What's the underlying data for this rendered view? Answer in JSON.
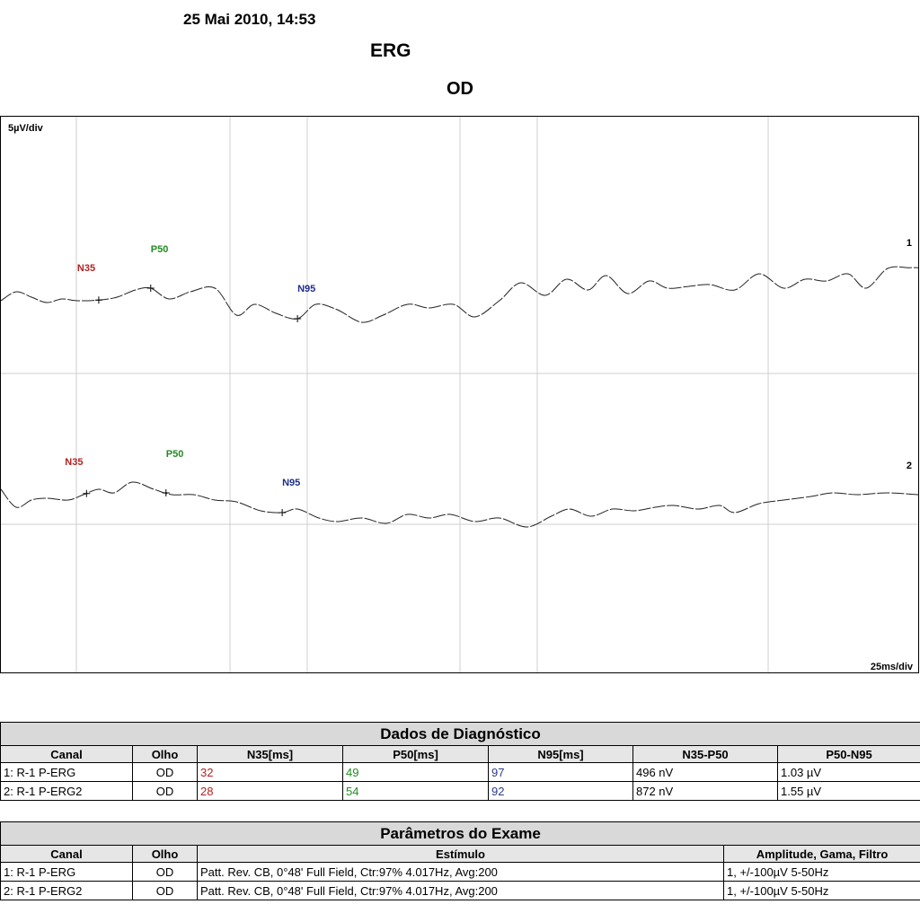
{
  "header": {
    "date": "25 Mai 2010, 14:53",
    "title": "ERG",
    "eye": "OD"
  },
  "colors": {
    "n35": "#b22222",
    "p50": "#228b22",
    "n95": "#1f2f8a",
    "trace": "#222222",
    "grid": "#cfcfcf"
  },
  "chart_data": {
    "type": "line",
    "ylabel": "5µV/div",
    "xlabel": "25ms/div",
    "series": [
      {
        "name": "1",
        "points": [
          [
            0,
            -0.3
          ],
          [
            5,
            -0.05
          ],
          [
            10,
            -0.2
          ],
          [
            15,
            -0.35
          ],
          [
            20,
            -0.25
          ],
          [
            25,
            -0.3
          ],
          [
            32,
            -0.28
          ],
          [
            38,
            -0.2
          ],
          [
            44,
            0.0
          ],
          [
            49,
            0.05
          ],
          [
            55,
            -0.25
          ],
          [
            62,
            -0.05
          ],
          [
            70,
            0.05
          ],
          [
            77,
            -0.7
          ],
          [
            83,
            -0.4
          ],
          [
            90,
            -0.65
          ],
          [
            97,
            -0.8
          ],
          [
            103,
            -0.4
          ],
          [
            110,
            -0.55
          ],
          [
            118,
            -0.9
          ],
          [
            125,
            -0.7
          ],
          [
            133,
            -0.4
          ],
          [
            140,
            -0.5
          ],
          [
            148,
            -0.4
          ],
          [
            155,
            -0.75
          ],
          [
            163,
            -0.3
          ],
          [
            170,
            0.2
          ],
          [
            178,
            -0.15
          ],
          [
            185,
            0.3
          ],
          [
            192,
            0.0
          ],
          [
            198,
            0.4
          ],
          [
            205,
            -0.1
          ],
          [
            212,
            0.25
          ],
          [
            218,
            0.05
          ],
          [
            225,
            0.1
          ],
          [
            232,
            0.15
          ],
          [
            240,
            0.0
          ],
          [
            248,
            0.45
          ],
          [
            256,
            0.05
          ],
          [
            263,
            0.3
          ],
          [
            270,
            0.25
          ],
          [
            277,
            0.45
          ],
          [
            283,
            0.05
          ],
          [
            290,
            0.6
          ],
          [
            297,
            0.62
          ],
          [
            300,
            0.62
          ]
        ]
      },
      {
        "name": "2",
        "points": [
          [
            0,
            0.1
          ],
          [
            5,
            -0.4
          ],
          [
            10,
            -0.2
          ],
          [
            15,
            -0.15
          ],
          [
            22,
            -0.2
          ],
          [
            27,
            -0.05
          ],
          [
            32,
            0.1
          ],
          [
            37,
            0.0
          ],
          [
            43,
            0.3
          ],
          [
            50,
            0.1
          ],
          [
            56,
            -0.05
          ],
          [
            63,
            -0.05
          ],
          [
            70,
            -0.2
          ],
          [
            77,
            -0.25
          ],
          [
            85,
            -0.5
          ],
          [
            92,
            -0.55
          ],
          [
            97,
            -0.45
          ],
          [
            104,
            -0.7
          ],
          [
            110,
            -0.8
          ],
          [
            118,
            -0.7
          ],
          [
            126,
            -0.85
          ],
          [
            133,
            -0.6
          ],
          [
            140,
            -0.7
          ],
          [
            147,
            -0.6
          ],
          [
            155,
            -0.8
          ],
          [
            163,
            -0.7
          ],
          [
            172,
            -0.95
          ],
          [
            180,
            -0.65
          ],
          [
            186,
            -0.45
          ],
          [
            193,
            -0.65
          ],
          [
            200,
            -0.45
          ],
          [
            207,
            -0.5
          ],
          [
            214,
            -0.4
          ],
          [
            220,
            -0.35
          ],
          [
            228,
            -0.45
          ],
          [
            235,
            -0.35
          ],
          [
            240,
            -0.55
          ],
          [
            248,
            -0.3
          ],
          [
            256,
            -0.2
          ],
          [
            265,
            -0.1
          ],
          [
            272,
            0.0
          ],
          [
            280,
            -0.05
          ],
          [
            290,
            0.0
          ],
          [
            300,
            -0.05
          ]
        ]
      }
    ],
    "markers": [
      {
        "series": 0,
        "label": "N35",
        "x": 32,
        "type": "n35"
      },
      {
        "series": 0,
        "label": "P50",
        "x": 49,
        "type": "p50"
      },
      {
        "series": 0,
        "label": "N95",
        "x": 97,
        "type": "n95"
      },
      {
        "series": 1,
        "label": "N35",
        "x": 28,
        "type": "n35"
      },
      {
        "series": 1,
        "label": "P50",
        "x": 54,
        "type": "p50"
      },
      {
        "series": 1,
        "label": "N95",
        "x": 92,
        "type": "n95"
      }
    ],
    "channel_labels": [
      "1",
      "2"
    ],
    "xlim": [
      0,
      300
    ]
  },
  "diagnostics": {
    "title": "Dados de Diagnóstico",
    "columns": [
      "Canal",
      "Olho",
      "N35[ms]",
      "P50[ms]",
      "N95[ms]",
      "N35-P50",
      "P50-N95"
    ],
    "rows": [
      [
        "1: R-1 P-ERG",
        "OD",
        "32",
        "49",
        "97",
        "496 nV",
        "1.03 µV"
      ],
      [
        "2: R-1 P-ERG2",
        "OD",
        "28",
        "54",
        "92",
        "872 nV",
        "1.55 µV"
      ]
    ]
  },
  "params": {
    "title": "Parâmetros do Exame",
    "columns": [
      "Canal",
      "Olho",
      "Estímulo",
      "Amplitude, Gama, Filtro"
    ],
    "rows": [
      [
        "1: R-1 P-ERG",
        "OD",
        "Patt. Rev. CB, 0°48' Full Field, Ctr:97% 4.017Hz, Avg:200",
        "1, +/-100µV 5-50Hz"
      ],
      [
        "2: R-1 P-ERG2",
        "OD",
        "Patt. Rev. CB, 0°48' Full Field, Ctr:97% 4.017Hz, Avg:200",
        "1, +/-100µV 5-50Hz"
      ]
    ]
  }
}
